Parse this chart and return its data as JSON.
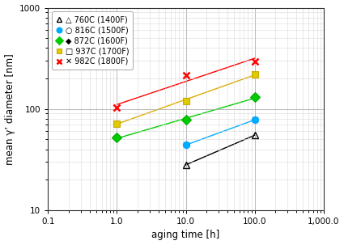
{
  "series": [
    {
      "label": "760C (1400F)",
      "marker": "^",
      "color": "#000000",
      "line_color": "#000000",
      "mfc": "none",
      "x": [
        10,
        100
      ],
      "y": [
        28,
        55
      ]
    },
    {
      "label": "816C (1500F)",
      "marker": "o",
      "color": "#00aaff",
      "line_color": "#00aaff",
      "mfc": "#00aaff",
      "x": [
        10,
        100
      ],
      "y": [
        44,
        78
      ]
    },
    {
      "label": "872C (1600F)",
      "marker": "D",
      "color": "#00aa00",
      "line_color": "#00cc00",
      "mfc": "#00cc00",
      "x": [
        1,
        10,
        100
      ],
      "y": [
        52,
        78,
        130
      ]
    },
    {
      "label": "937C (1700F)",
      "marker": "s",
      "color": "#ccaa00",
      "line_color": "#ddaa00",
      "mfc": "#ddcc00",
      "x": [
        1,
        10,
        100
      ],
      "y": [
        72,
        120,
        220
      ]
    },
    {
      "label": "982C (1800F)",
      "marker": "x",
      "color": "#ff0000",
      "line_color": "#ff0000",
      "mfc": "none",
      "x": [
        1,
        10,
        100
      ],
      "y": [
        103,
        215,
        295
      ]
    }
  ],
  "legend_labels": [
    "△ 760C (1400F)",
    "○ 816C (1500F)",
    "◆ 872C (1600F)",
    "□ 937C (1700F)",
    "✕ 982C (1800F)"
  ],
  "xlabel": "aging time [h]",
  "ylabel": "mean γ’ diameter [nm]",
  "xlim": [
    0.1,
    1000.0
  ],
  "ylim": [
    10,
    1000
  ],
  "xticks": [
    0.1,
    1.0,
    10.0,
    100.0,
    1000.0
  ],
  "xticklabels": [
    "0.1",
    "1.0",
    "10.0",
    "100.0",
    "1,000.0"
  ],
  "yticks": [
    10,
    100,
    1000
  ],
  "yticklabels": [
    "10",
    "100",
    "1000"
  ],
  "background_color": "#ffffff",
  "grid_major_color": "#b0b0b0",
  "grid_minor_color": "#d8d8d8",
  "figsize": [
    4.25,
    3.03
  ],
  "dpi": 100
}
